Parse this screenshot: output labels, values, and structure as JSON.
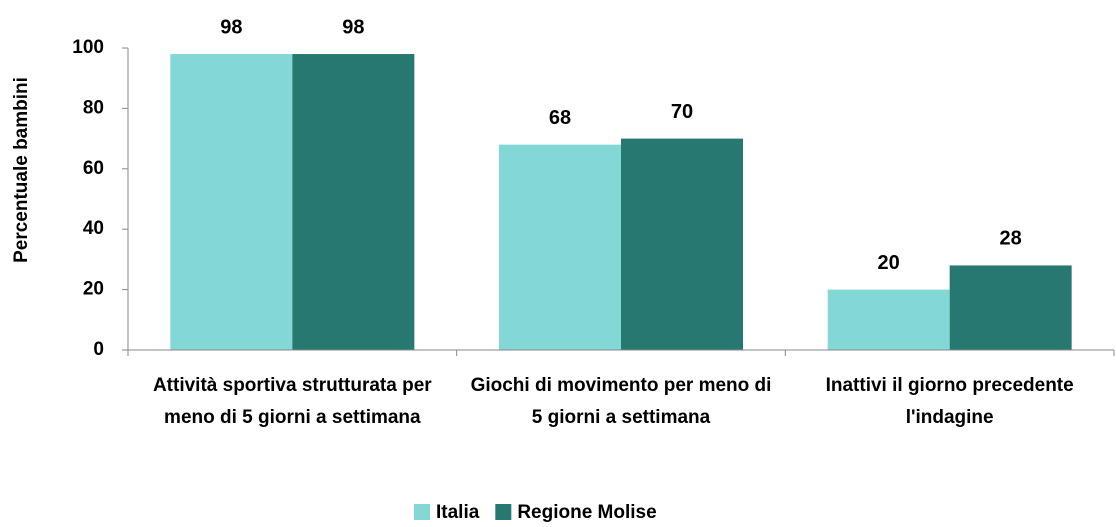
{
  "chart_data": {
    "type": "bar",
    "categories": [
      "Attività sportiva strutturata per meno di 5 giorni a settimana",
      "Giochi di movimento per meno di 5 giorni a settimana",
      "Inattivi il giorno precedente l'indagine"
    ],
    "series": [
      {
        "name": "Italia",
        "color": "#83d8d6",
        "values": [
          98,
          68,
          20
        ]
      },
      {
        "name": "Regione Molise",
        "color": "#287872",
        "values": [
          98,
          70,
          28
        ]
      }
    ],
    "y_label": "Percentuale bambini",
    "ylim": [
      0,
      100
    ],
    "yticks": [
      0,
      20,
      40,
      60,
      80,
      100
    ],
    "legend": "bottom"
  }
}
